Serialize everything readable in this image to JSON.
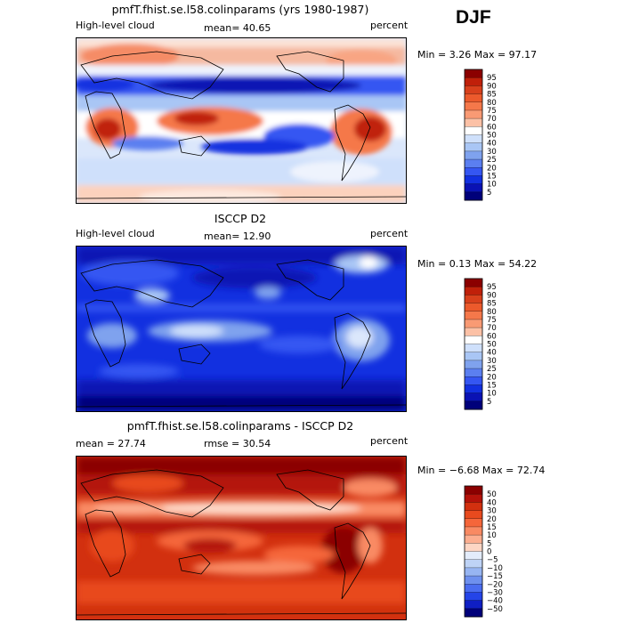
{
  "season": "DJF",
  "panels": [
    {
      "title": "pmfT.fhist.se.l58.colinparams (yrs 1980-1987)",
      "left_label": "High-level cloud",
      "mean_text": "mean=  40.65",
      "rmse_text": "",
      "units": "percent",
      "minmax_text": "Min =   3.26 Max =  97.17"
    },
    {
      "title": "ISCCP D2",
      "left_label": "High-level cloud",
      "mean_text": "mean=  12.90",
      "rmse_text": "",
      "units": "percent",
      "minmax_text": "Min =   0.13 Max =  54.22"
    },
    {
      "title": "pmfT.fhist.se.l58.colinparams - ISCCP D2",
      "left_label": "mean =  27.74",
      "mean_text": "",
      "rmse_text": "rmse =  30.54",
      "units": "percent",
      "minmax_text": "Min =  −6.68 Max =  72.74"
    }
  ],
  "legends": {
    "abs": {
      "labels": [
        "95",
        "90",
        "85",
        "80",
        "75",
        "70",
        "60",
        "50",
        "40",
        "30",
        "25",
        "20",
        "15",
        "10",
        "5"
      ],
      "colors": [
        "#8b0000",
        "#c0200a",
        "#d8401c",
        "#ec5a2c",
        "#f5784a",
        "#f99a74",
        "#fcc1a6",
        "#ffffff",
        "#cfe0fb",
        "#a9c6f5",
        "#7fa2ee",
        "#5b7ff0",
        "#3556f2",
        "#1230e0",
        "#0a12b4",
        "#00007a"
      ]
    },
    "diff": {
      "labels": [
        "50",
        "40",
        "30",
        "20",
        "15",
        "10",
        "5",
        "0",
        "−5",
        "−10",
        "−15",
        "−20",
        "−30",
        "−40",
        "−50"
      ],
      "colors": [
        "#8b0000",
        "#b4120a",
        "#d2300f",
        "#e84a1e",
        "#f5663a",
        "#f98a63",
        "#fcae90",
        "#fdd6c4",
        "#e3ecfb",
        "#bed3f6",
        "#97b5f2",
        "#6e90ee",
        "#4a6cf0",
        "#2444e8",
        "#0f1fc4",
        "#00007a"
      ]
    }
  },
  "chart_data": [
    {
      "type": "heatmap",
      "title": "pmfT.fhist.se.l58.colinparams (yrs 1980-1987)",
      "variable": "High-level cloud",
      "units": "percent",
      "season": "DJF",
      "mean": 40.65,
      "min": 3.26,
      "max": 97.17,
      "levels": [
        5,
        10,
        15,
        20,
        25,
        30,
        40,
        50,
        60,
        70,
        75,
        80,
        85,
        90,
        95
      ]
    },
    {
      "type": "heatmap",
      "title": "ISCCP D2",
      "variable": "High-level cloud",
      "units": "percent",
      "season": "DJF",
      "mean": 12.9,
      "min": 0.13,
      "max": 54.22,
      "levels": [
        5,
        10,
        15,
        20,
        25,
        30,
        40,
        50,
        60,
        70,
        75,
        80,
        85,
        90,
        95
      ]
    },
    {
      "type": "heatmap",
      "title": "pmfT.fhist.se.l58.colinparams - ISCCP D2",
      "units": "percent",
      "season": "DJF",
      "mean": 27.74,
      "rmse": 30.54,
      "min": -6.68,
      "max": 72.74,
      "levels": [
        -50,
        -40,
        -30,
        -20,
        -15,
        -10,
        -5,
        0,
        5,
        10,
        15,
        20,
        30,
        40,
        50
      ]
    }
  ]
}
